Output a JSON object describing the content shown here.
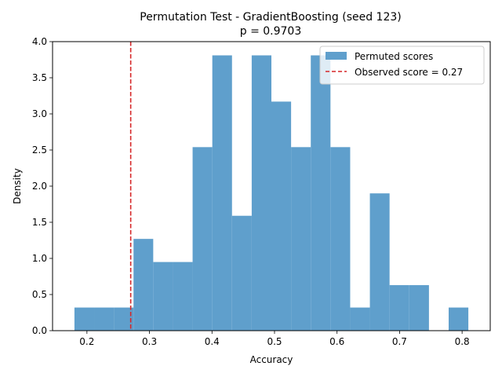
{
  "chart_data": {
    "type": "bar",
    "subtype": "histogram",
    "title": "Permutation Test - GradientBoosting (seed 123)",
    "subtitle": "p = 0.9703",
    "xlabel": "Accuracy",
    "ylabel": "Density",
    "xlim": [
      0.145,
      0.845
    ],
    "ylim": [
      0,
      4.0
    ],
    "xticks": [
      0.2,
      0.3,
      0.4,
      0.5,
      0.6,
      0.7,
      0.8
    ],
    "xtick_labels": [
      "0.2",
      "0.3",
      "0.4",
      "0.5",
      "0.6",
      "0.7",
      "0.8"
    ],
    "yticks": [
      0.0,
      0.5,
      1.0,
      1.5,
      2.0,
      2.5,
      3.0,
      3.5,
      4.0
    ],
    "ytick_labels": [
      "0.0",
      "0.5",
      "1.0",
      "1.5",
      "2.0",
      "2.5",
      "3.0",
      "3.5",
      "4.0"
    ],
    "grid": false,
    "legend_position": "top-right",
    "series": [
      {
        "name": "Permuted scores",
        "color": "#5f9fcc",
        "bins": [
          {
            "x0": 0.18,
            "x1": 0.2115,
            "value": 0.32
          },
          {
            "x0": 0.2115,
            "x1": 0.243,
            "value": 0.32
          },
          {
            "x0": 0.243,
            "x1": 0.2745,
            "value": 0.32
          },
          {
            "x0": 0.2745,
            "x1": 0.306,
            "value": 1.27
          },
          {
            "x0": 0.306,
            "x1": 0.3375,
            "value": 0.95
          },
          {
            "x0": 0.3375,
            "x1": 0.369,
            "value": 0.95
          },
          {
            "x0": 0.369,
            "x1": 0.4005,
            "value": 2.54
          },
          {
            "x0": 0.4005,
            "x1": 0.432,
            "value": 3.81
          },
          {
            "x0": 0.432,
            "x1": 0.4635,
            "value": 1.59
          },
          {
            "x0": 0.4635,
            "x1": 0.495,
            "value": 3.81
          },
          {
            "x0": 0.495,
            "x1": 0.5265,
            "value": 3.17
          },
          {
            "x0": 0.5265,
            "x1": 0.558,
            "value": 2.54
          },
          {
            "x0": 0.558,
            "x1": 0.5895,
            "value": 3.81
          },
          {
            "x0": 0.5895,
            "x1": 0.621,
            "value": 2.54
          },
          {
            "x0": 0.621,
            "x1": 0.6525,
            "value": 0.32
          },
          {
            "x0": 0.6525,
            "x1": 0.684,
            "value": 1.9
          },
          {
            "x0": 0.684,
            "x1": 0.7155,
            "value": 0.63
          },
          {
            "x0": 0.7155,
            "x1": 0.747,
            "value": 0.63
          },
          {
            "x0": 0.747,
            "x1": 0.7785,
            "value": 0
          },
          {
            "x0": 0.7785,
            "x1": 0.81,
            "value": 0.32
          }
        ]
      }
    ],
    "reference_lines": [
      {
        "name": "Observed score = 0.27",
        "x": 0.27,
        "color": "#d62728",
        "style": "dashed"
      }
    ]
  }
}
